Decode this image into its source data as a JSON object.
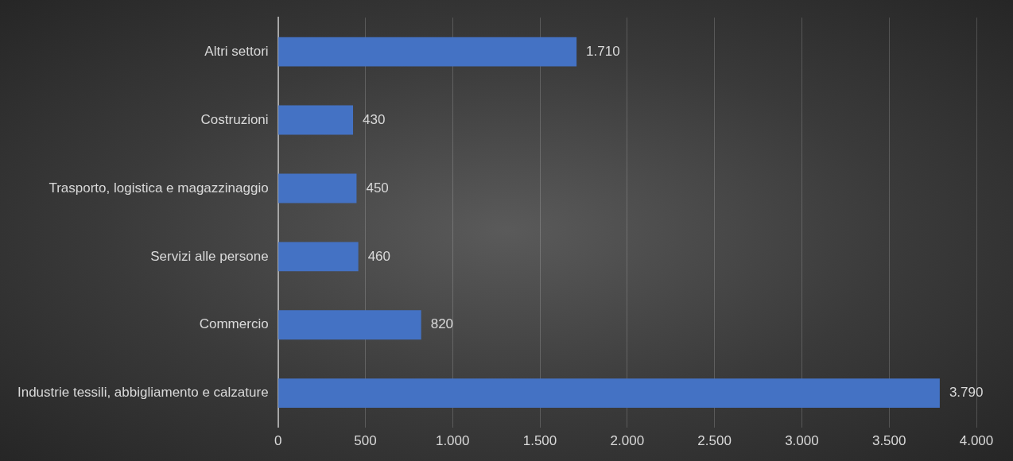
{
  "chart_data": {
    "type": "bar",
    "orientation": "horizontal",
    "categories": [
      "Altri settori",
      "Costruzioni",
      "Trasporto, logistica e magazzinaggio",
      "Servizi alle persone",
      "Commercio",
      "Industrie tessili, abbigliamento e calzature"
    ],
    "values": [
      1710,
      430,
      450,
      460,
      820,
      3790
    ],
    "value_labels": [
      "1.710",
      "430",
      "450",
      "460",
      "820",
      "3.790"
    ],
    "color": "#4472c4",
    "xlim": [
      0,
      4000
    ],
    "xticks": [
      0,
      500,
      {
        "value": 1000,
        "label": "1.000"
      },
      {
        "value": 1500,
        "label": "1.500"
      },
      {
        "value": 2000,
        "label": "2.000"
      },
      {
        "value": 2500,
        "label": "2.500"
      },
      {
        "value": 3000,
        "label": "3.000"
      },
      {
        "value": 3500,
        "label": "3.500"
      },
      {
        "value": 4000,
        "label": "4.000"
      }
    ],
    "grid": "x",
    "legend": false
  }
}
